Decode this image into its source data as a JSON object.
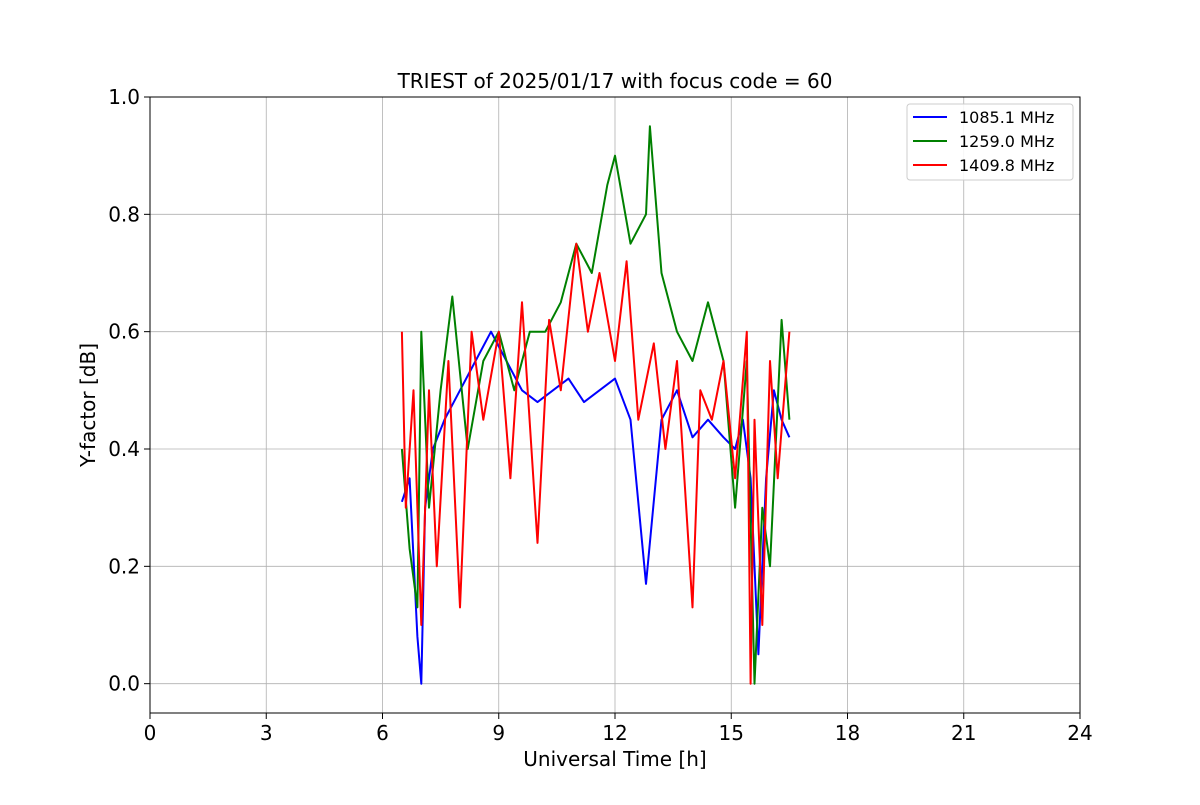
{
  "chart_data": {
    "type": "line",
    "title": "TRIEST of 2025/01/17 with focus code = 60",
    "xlabel": "Universal Time [h]",
    "ylabel": "Y-factor [dB]",
    "xlim": [
      0,
      24
    ],
    "ylim": [
      -0.05,
      1.0
    ],
    "xticks": [
      0,
      3,
      6,
      9,
      12,
      15,
      18,
      21,
      24
    ],
    "yticks": [
      0.0,
      0.2,
      0.4,
      0.6,
      0.8,
      1.0
    ],
    "xtick_labels": [
      "0",
      "3",
      "6",
      "9",
      "12",
      "15",
      "18",
      "21",
      "24"
    ],
    "ytick_labels": [
      "0.0",
      "0.2",
      "0.4",
      "0.6",
      "0.8",
      "1.0"
    ],
    "grid": true,
    "legend_position": "top-right",
    "series": [
      {
        "name": "1085.1 MHz",
        "color": "#0000ff",
        "x": [
          6.5,
          6.7,
          6.9,
          7.0,
          7.1,
          7.3,
          7.6,
          8.0,
          8.4,
          8.8,
          9.2,
          9.6,
          10.0,
          10.4,
          10.8,
          11.2,
          11.6,
          12.0,
          12.4,
          12.8,
          13.2,
          13.6,
          14.0,
          14.4,
          14.8,
          15.1,
          15.3,
          15.5,
          15.7,
          15.9,
          16.1,
          16.3,
          16.5
        ],
        "values": [
          0.31,
          0.35,
          0.08,
          0.0,
          0.3,
          0.4,
          0.45,
          0.5,
          0.55,
          0.6,
          0.55,
          0.5,
          0.48,
          0.5,
          0.52,
          0.48,
          0.5,
          0.52,
          0.45,
          0.17,
          0.45,
          0.5,
          0.42,
          0.45,
          0.42,
          0.4,
          0.45,
          0.35,
          0.05,
          0.35,
          0.5,
          0.45,
          0.42
        ]
      },
      {
        "name": "1259.0 MHz",
        "color": "#008000",
        "x": [
          6.5,
          6.7,
          6.9,
          7.0,
          7.2,
          7.5,
          7.8,
          8.2,
          8.6,
          9.0,
          9.4,
          9.8,
          10.2,
          10.6,
          11.0,
          11.4,
          11.8,
          12.0,
          12.4,
          12.8,
          12.9,
          13.2,
          13.6,
          14.0,
          14.4,
          14.8,
          15.1,
          15.4,
          15.6,
          15.8,
          16.0,
          16.3,
          16.5
        ],
        "values": [
          0.4,
          0.23,
          0.13,
          0.6,
          0.3,
          0.5,
          0.66,
          0.4,
          0.55,
          0.6,
          0.5,
          0.6,
          0.6,
          0.65,
          0.75,
          0.7,
          0.85,
          0.9,
          0.75,
          0.8,
          0.95,
          0.7,
          0.6,
          0.55,
          0.65,
          0.55,
          0.3,
          0.55,
          0.0,
          0.3,
          0.2,
          0.62,
          0.45
        ]
      },
      {
        "name": "1409.8 MHz",
        "color": "#ff0000",
        "x": [
          6.5,
          6.6,
          6.8,
          7.0,
          7.2,
          7.4,
          7.7,
          8.0,
          8.3,
          8.6,
          9.0,
          9.3,
          9.6,
          10.0,
          10.3,
          10.6,
          11.0,
          11.3,
          11.6,
          12.0,
          12.3,
          12.6,
          13.0,
          13.3,
          13.6,
          14.0,
          14.2,
          14.5,
          14.8,
          15.1,
          15.4,
          15.5,
          15.6,
          15.8,
          16.0,
          16.2,
          16.5
        ],
        "values": [
          0.6,
          0.3,
          0.5,
          0.1,
          0.5,
          0.2,
          0.55,
          0.13,
          0.6,
          0.45,
          0.6,
          0.35,
          0.65,
          0.24,
          0.62,
          0.5,
          0.75,
          0.6,
          0.7,
          0.55,
          0.72,
          0.45,
          0.58,
          0.4,
          0.55,
          0.13,
          0.5,
          0.45,
          0.55,
          0.35,
          0.6,
          0.0,
          0.45,
          0.1,
          0.55,
          0.35,
          0.6
        ]
      }
    ]
  }
}
